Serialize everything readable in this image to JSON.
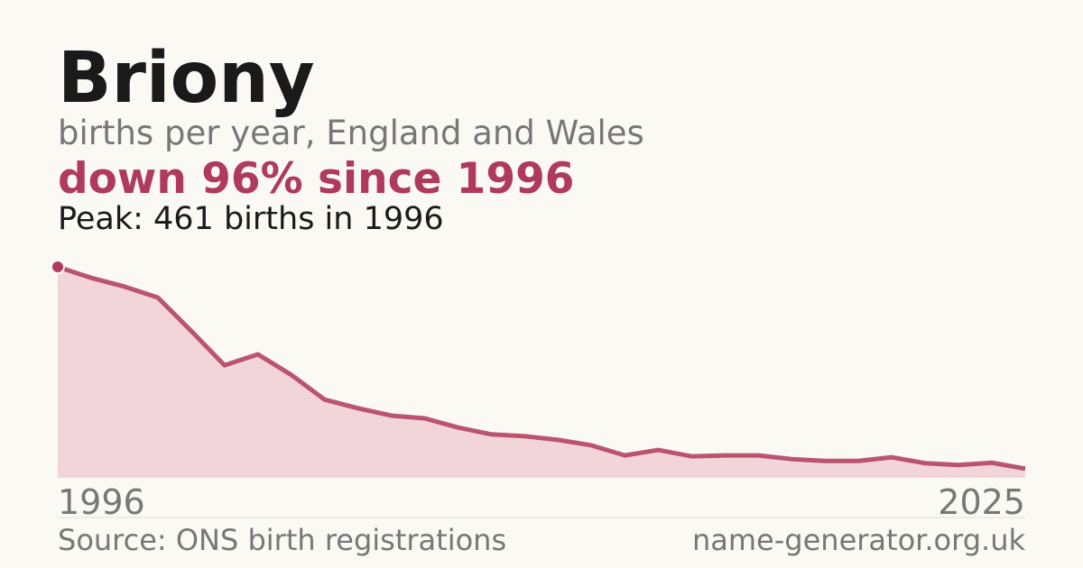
{
  "chart_data": {
    "type": "area",
    "title": "Briony",
    "subtitle": "births per year, England and Wales",
    "headline": "down 96% since 1996",
    "peak_note": "Peak: 461 births in 1996",
    "source": "Source: ONS birth registrations",
    "credit": "name-generator.org.uk",
    "x": [
      1996,
      1997,
      1998,
      1999,
      2000,
      2001,
      2002,
      2003,
      2004,
      2005,
      2006,
      2007,
      2008,
      2009,
      2010,
      2011,
      2012,
      2013,
      2014,
      2015,
      2016,
      2017,
      2018,
      2019,
      2020,
      2021,
      2022,
      2023,
      2024,
      2025
    ],
    "values": [
      461,
      437,
      418,
      394,
      321,
      246,
      270,
      225,
      171,
      152,
      136,
      130,
      110,
      95,
      91,
      83,
      71,
      49,
      61,
      47,
      49,
      49,
      41,
      37,
      37,
      45,
      32,
      28,
      33,
      20
    ],
    "xlim": [
      1996,
      2025
    ],
    "xticks": [
      1996,
      2025
    ],
    "ylim": [
      0,
      461
    ],
    "color": "#b03a5b",
    "fill": "#f2d5db"
  }
}
